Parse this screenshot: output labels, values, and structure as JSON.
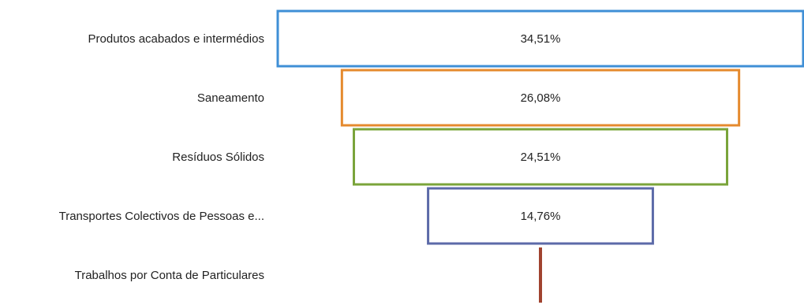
{
  "chart_data": {
    "type": "bar",
    "orientation": "funnel",
    "categories": [
      "Produtos acabados e intermédios",
      "Saneamento",
      "Resíduos Sólidos",
      "Transportes Colectivos de Pessoas e...",
      "Trabalhos por Conta de Particulares"
    ],
    "values": [
      34.51,
      26.08,
      24.51,
      14.76,
      0.13
    ],
    "value_labels": [
      "34,51%",
      "26,08%",
      "24,51%",
      "14,76%",
      ""
    ],
    "colors": [
      "#3f8fd6",
      "#e58a2e",
      "#7aa43a",
      "#5c6aa8",
      "#a0432f"
    ],
    "xlim": [
      0,
      34.51
    ],
    "grid": false,
    "legend": "none"
  }
}
